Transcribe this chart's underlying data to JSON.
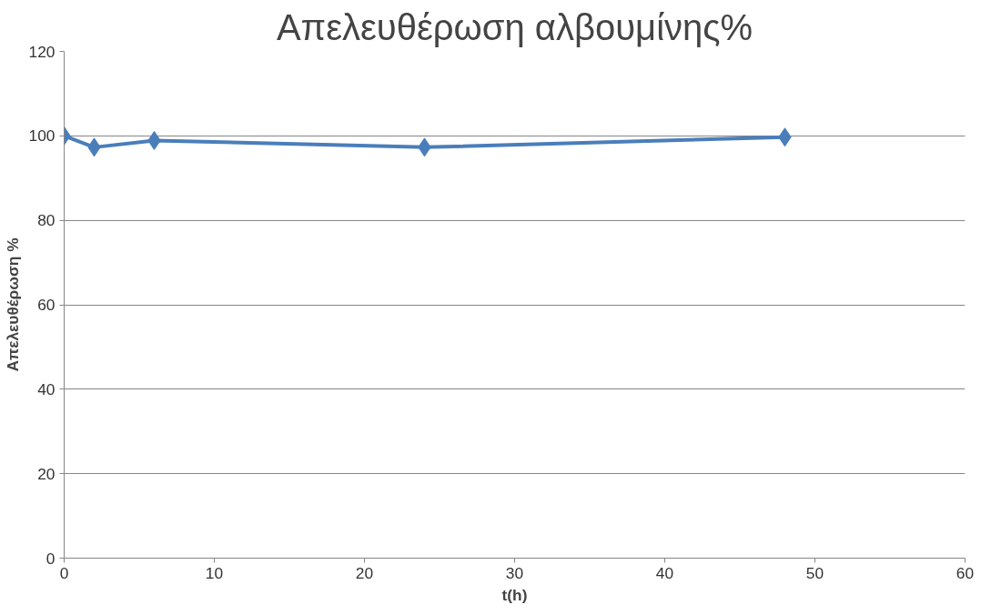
{
  "chart_data": {
    "type": "line",
    "title": "Απελευθέρωση αλβουμίνης%",
    "xlabel": "t(h)",
    "ylabel": "Απελευθέρωση %",
    "x": [
      0,
      2,
      6,
      24,
      48
    ],
    "series": [
      {
        "color": "#4a7ebb",
        "values": [
          100,
          97.3,
          98.9,
          97.3,
          99.7
        ]
      }
    ],
    "xlim": [
      0,
      60
    ],
    "xticks": [
      0,
      10,
      20,
      30,
      40,
      50,
      60
    ],
    "ylim": [
      0,
      120
    ],
    "yticks": [
      0,
      20,
      40,
      60,
      80,
      100,
      120
    ],
    "grid": "y",
    "marker": "diamond",
    "line_style": "solid"
  }
}
